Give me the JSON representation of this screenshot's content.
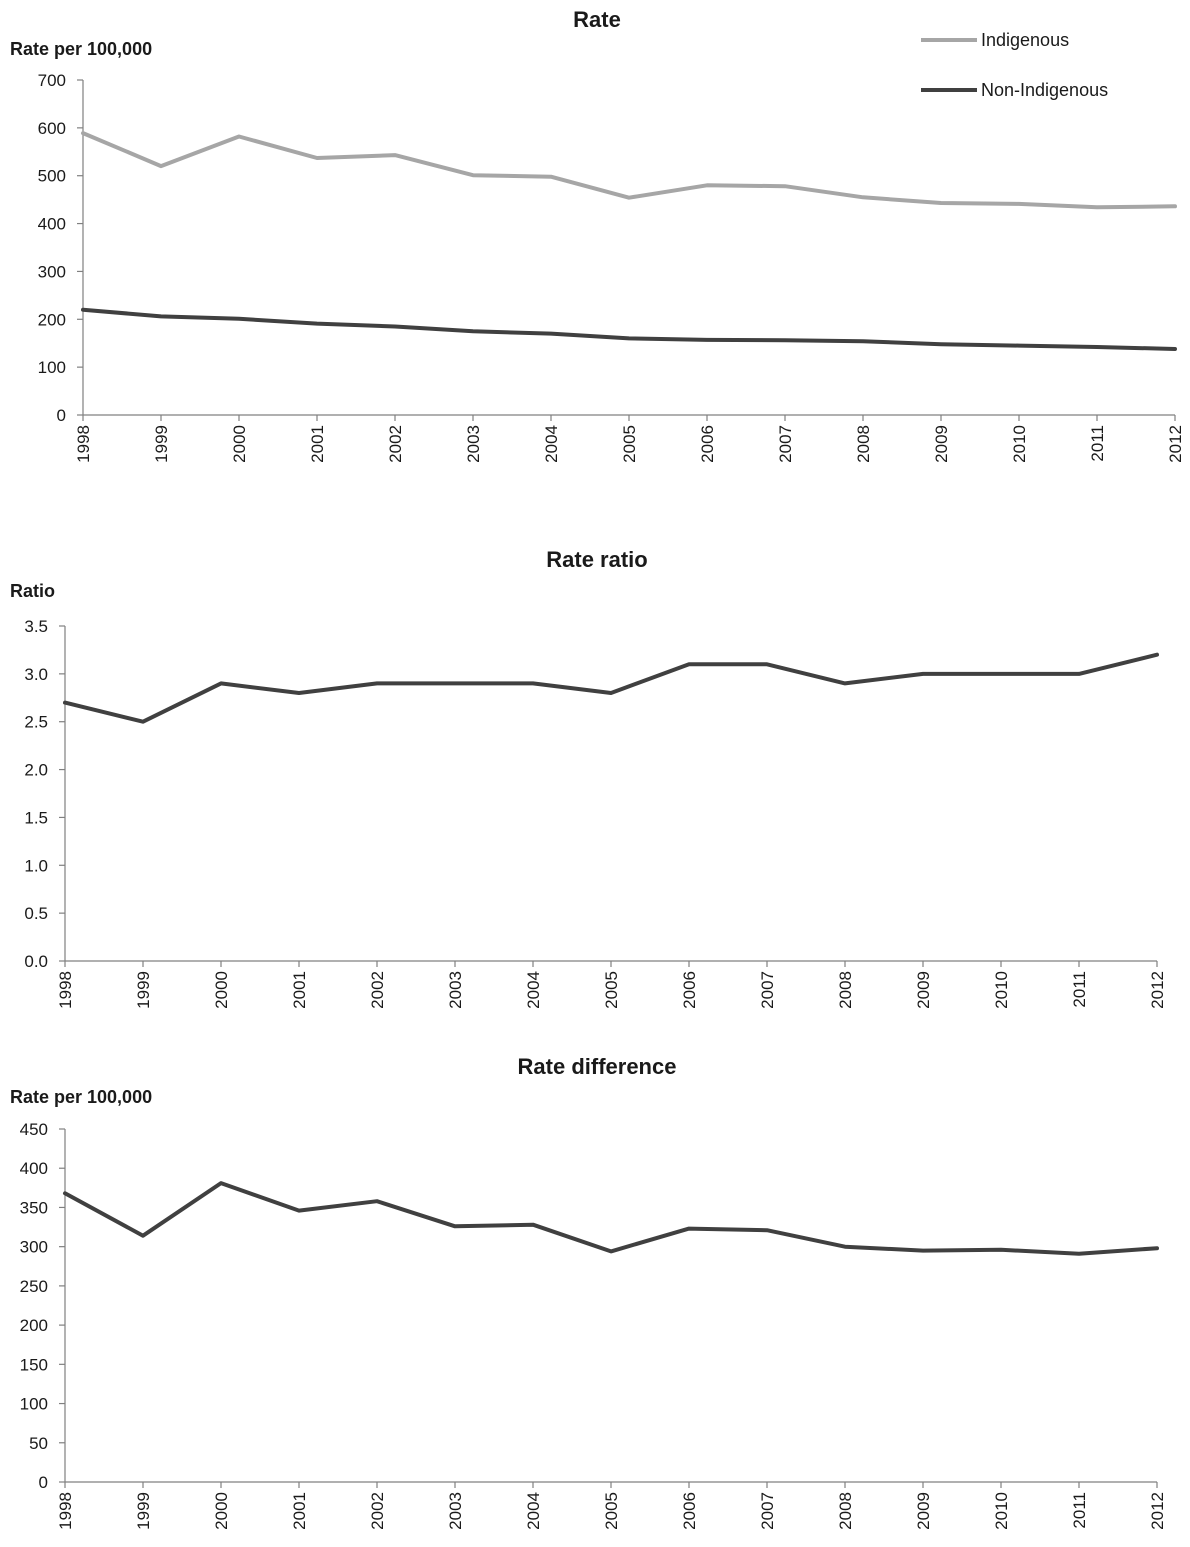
{
  "chart_data": [
    {
      "type": "line",
      "title": "Rate",
      "ylabel": "Rate per 100,000",
      "xlabel": "",
      "categories": [
        "1998",
        "1999",
        "2000",
        "2001",
        "2002",
        "2003",
        "2004",
        "2005",
        "2006",
        "2007",
        "2008",
        "2009",
        "2010",
        "2011",
        "2012"
      ],
      "ylim": [
        0,
        700
      ],
      "yticks": [
        "0",
        "100",
        "200",
        "300",
        "400",
        "500",
        "600",
        "700"
      ],
      "grid": false,
      "legend_position": "top-right",
      "series": [
        {
          "name": "Indigenous",
          "color": "#a6a6a6",
          "values": [
            589,
            520,
            582,
            537,
            543,
            501,
            498,
            454,
            480,
            478,
            455,
            443,
            441,
            434,
            436
          ]
        },
        {
          "name": "Non-Indigenous",
          "color": "#404040",
          "values": [
            220,
            206,
            201,
            191,
            185,
            175,
            170,
            160,
            157,
            156,
            154,
            148,
            145,
            142,
            138
          ]
        }
      ]
    },
    {
      "type": "line",
      "title": "Rate ratio",
      "ylabel": "Ratio",
      "xlabel": "",
      "categories": [
        "1998",
        "1999",
        "2000",
        "2001",
        "2002",
        "2003",
        "2004",
        "2005",
        "2006",
        "2007",
        "2008",
        "2009",
        "2010",
        "2011",
        "2012"
      ],
      "ylim": [
        0,
        3.5
      ],
      "yticks": [
        "0.0",
        "0.5",
        "1.0",
        "1.5",
        "2.0",
        "2.5",
        "3.0",
        "3.5"
      ],
      "grid": false,
      "series": [
        {
          "color": "#404040",
          "values": [
            2.7,
            2.5,
            2.9,
            2.8,
            2.9,
            2.9,
            2.9,
            2.8,
            3.1,
            3.1,
            2.9,
            3.0,
            3.0,
            3.0,
            3.2
          ]
        }
      ]
    },
    {
      "type": "line",
      "title": "Rate difference",
      "ylabel": "Rate per 100,000",
      "xlabel": "",
      "categories": [
        "1998",
        "1999",
        "2000",
        "2001",
        "2002",
        "2003",
        "2004",
        "2005",
        "2006",
        "2007",
        "2008",
        "2009",
        "2010",
        "2011",
        "2012"
      ],
      "ylim": [
        0,
        450
      ],
      "yticks": [
        "0",
        "50",
        "100",
        "150",
        "200",
        "250",
        "300",
        "350",
        "400",
        "450"
      ],
      "grid": false,
      "series": [
        {
          "color": "#404040",
          "values": [
            368,
            314,
            381,
            346,
            358,
            326,
            328,
            294,
            323,
            321,
            300,
            295,
            296,
            291,
            298
          ]
        }
      ]
    }
  ]
}
